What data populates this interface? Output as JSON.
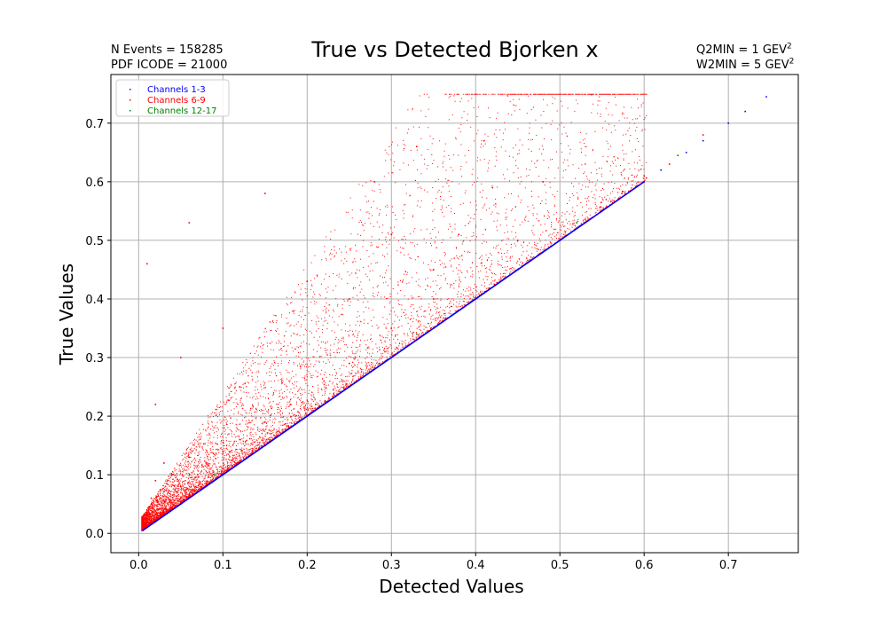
{
  "annotations": {
    "n_events": "N Events =  158285",
    "pdf_icode": "PDF ICODE = 21000",
    "q2min_prefix": "Q2MIN = 1 GEV",
    "w2min_prefix": "W2MIN = 5 GEV",
    "exponent": "2"
  },
  "chart_data": {
    "type": "scatter",
    "title": "True vs Detected Bjorken x",
    "xlabel": "Detected Values",
    "ylabel": "True Values",
    "xlim": [
      -0.033,
      0.783
    ],
    "ylim": [
      -0.033,
      0.783
    ],
    "xticks": [
      0.0,
      0.1,
      0.2,
      0.3,
      0.4,
      0.5,
      0.6,
      0.7
    ],
    "yticks": [
      0.0,
      0.1,
      0.2,
      0.3,
      0.4,
      0.5,
      0.6,
      0.7
    ],
    "tick_labels": [
      "0.0",
      "0.1",
      "0.2",
      "0.3",
      "0.4",
      "0.5",
      "0.6",
      "0.7"
    ],
    "grid": true,
    "legend_position": "top-left",
    "series": [
      {
        "name": "Channels 1-3",
        "color": "#0000ff",
        "points": [
          [
            0.005,
            0.005
          ],
          [
            0.02,
            0.02
          ],
          [
            0.05,
            0.05
          ],
          [
            0.08,
            0.08
          ],
          [
            0.1,
            0.1
          ],
          [
            0.15,
            0.15
          ],
          [
            0.2,
            0.2
          ],
          [
            0.25,
            0.25
          ],
          [
            0.3,
            0.3
          ],
          [
            0.35,
            0.35
          ],
          [
            0.4,
            0.4
          ],
          [
            0.45,
            0.45
          ],
          [
            0.5,
            0.5
          ],
          [
            0.55,
            0.55
          ],
          [
            0.6,
            0.6
          ],
          [
            0.62,
            0.62
          ],
          [
            0.65,
            0.65
          ],
          [
            0.67,
            0.67
          ],
          [
            0.7,
            0.7
          ],
          [
            0.72,
            0.72
          ],
          [
            0.745,
            0.745
          ]
        ]
      },
      {
        "name": "Channels 6-9",
        "color": "#ff0000",
        "points": [
          [
            0.01,
            0.03
          ],
          [
            0.015,
            0.06
          ],
          [
            0.02,
            0.09
          ],
          [
            0.025,
            0.05
          ],
          [
            0.03,
            0.12
          ],
          [
            0.035,
            0.07
          ],
          [
            0.04,
            0.1
          ],
          [
            0.05,
            0.08
          ],
          [
            0.06,
            0.13
          ],
          [
            0.07,
            0.1
          ],
          [
            0.08,
            0.12
          ],
          [
            0.1,
            0.14
          ],
          [
            0.12,
            0.16
          ],
          [
            0.15,
            0.19
          ],
          [
            0.18,
            0.22
          ],
          [
            0.22,
            0.26
          ],
          [
            0.25,
            0.29
          ],
          [
            0.3,
            0.35
          ],
          [
            0.35,
            0.4
          ],
          [
            0.45,
            0.5
          ],
          [
            0.01,
            0.46
          ],
          [
            0.06,
            0.53
          ],
          [
            0.15,
            0.58
          ],
          [
            0.28,
            0.6
          ],
          [
            0.33,
            0.66
          ],
          [
            0.41,
            0.67
          ],
          [
            0.42,
            0.59
          ],
          [
            0.48,
            0.6
          ],
          [
            0.6,
            0.61
          ],
          [
            0.63,
            0.63
          ],
          [
            0.67,
            0.68
          ],
          [
            0.3,
            0.51
          ],
          [
            0.38,
            0.51
          ],
          [
            0.2,
            0.43
          ],
          [
            0.1,
            0.35
          ],
          [
            0.05,
            0.3
          ],
          [
            0.02,
            0.22
          ],
          [
            0.12,
            0.25
          ],
          [
            0.25,
            0.4
          ],
          [
            0.35,
            0.45
          ]
        ]
      },
      {
        "name": "Channels 12-17",
        "color": "#008000",
        "points": [
          [
            0.09,
            0.1
          ],
          [
            0.21,
            0.22
          ],
          [
            0.33,
            0.34
          ],
          [
            0.52,
            0.53
          ],
          [
            0.64,
            0.645
          ]
        ]
      }
    ]
  }
}
